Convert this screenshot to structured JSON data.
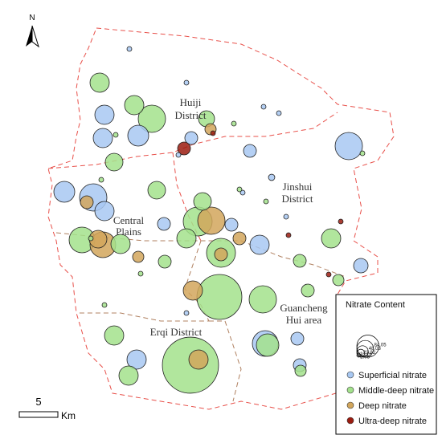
{
  "north": "N",
  "scale": {
    "value": 5,
    "unit": "Km"
  },
  "districts": [
    [
      "Huiji",
      "District"
    ],
    [
      "Jinshui",
      "District"
    ],
    [
      "Central",
      "Plains"
    ],
    [
      "Guancheng",
      "Hui area"
    ],
    [
      "Erqi District"
    ]
  ],
  "legend": {
    "title": "Nitrate Content",
    "sizes": [
      2.05,
      10.76,
      22.32,
      48.03,
      84.05
    ],
    "types": [
      {
        "name": "Superficial  nitrate",
        "color": "#a8c8f2"
      },
      {
        "name": "Middle-deep nitrate",
        "color": "#a3e28c"
      },
      {
        "name": "Deep nitrate",
        "color": "#d2a65c"
      },
      {
        "name": "Ultra-deep nitrate",
        "color": "#9b1c10"
      }
    ]
  },
  "sites": [
    {
      "type": 0,
      "value": 1.2
    },
    {
      "type": 0,
      "value": 1.2
    },
    {
      "type": 0,
      "value": 1.2
    },
    {
      "type": 0,
      "value": 1.2
    },
    {
      "type": 0,
      "value": 19.3
    },
    {
      "type": 0,
      "value": 22.7
    },
    {
      "type": 0,
      "value": 19.3
    },
    {
      "type": 0,
      "value": 8.6
    },
    {
      "type": 0,
      "value": 8.6
    },
    {
      "type": 0,
      "value": 38.8
    },
    {
      "type": 0,
      "value": 1.2
    },
    {
      "type": 0,
      "value": 2.1
    },
    {
      "type": 0,
      "value": 1.2
    },
    {
      "type": 0,
      "value": 22.7
    },
    {
      "type": 0,
      "value": 38.8
    },
    {
      "type": 0,
      "value": 19.3
    },
    {
      "type": 0,
      "value": 8.6
    },
    {
      "type": 0,
      "value": 8.6
    },
    {
      "type": 0,
      "value": 1.2
    },
    {
      "type": 0,
      "value": 19.3
    },
    {
      "type": 0,
      "value": 10.9
    },
    {
      "type": 0,
      "value": 1.2
    },
    {
      "type": 0,
      "value": 34.4
    },
    {
      "type": 0,
      "value": 8.6
    },
    {
      "type": 0,
      "value": 19.3
    },
    {
      "type": 0,
      "value": 8.6
    },
    {
      "type": 1,
      "value": 19.3
    },
    {
      "type": 1,
      "value": 19.3
    },
    {
      "type": 1,
      "value": 38.8
    },
    {
      "type": 1,
      "value": 13.4
    },
    {
      "type": 1,
      "value": 1.2
    },
    {
      "type": 1,
      "value": 1.2
    },
    {
      "type": 1,
      "value": 16.2
    },
    {
      "type": 1,
      "value": 1.2
    },
    {
      "type": 1,
      "value": 16.2
    },
    {
      "type": 1,
      "value": 1.2
    },
    {
      "type": 1,
      "value": 1.2
    },
    {
      "type": 1,
      "value": 16.2
    },
    {
      "type": 1,
      "value": 43.5
    },
    {
      "type": 1,
      "value": 19.3
    },
    {
      "type": 1,
      "value": 34.4
    },
    {
      "type": 1,
      "value": 19.3
    },
    {
      "type": 1,
      "value": 43.5
    },
    {
      "type": 1,
      "value": 19.3
    },
    {
      "type": 1,
      "value": 8.6
    },
    {
      "type": 1,
      "value": 8.6
    },
    {
      "type": 1,
      "value": 1.2
    },
    {
      "type": 1,
      "value": 6.6
    },
    {
      "type": 1,
      "value": 8.6
    },
    {
      "type": 1,
      "value": 105
    },
    {
      "type": 1,
      "value": 38.8
    },
    {
      "type": 1,
      "value": 1.2
    },
    {
      "type": 1,
      "value": 19.3
    },
    {
      "type": 1,
      "value": 26.3
    },
    {
      "type": 1,
      "value": 164
    },
    {
      "type": 1,
      "value": 19.3
    },
    {
      "type": 1,
      "value": 1.2
    },
    {
      "type": 1,
      "value": 6.6
    },
    {
      "type": 1,
      "value": 1.2
    },
    {
      "type": 2,
      "value": 34.4
    },
    {
      "type": 2,
      "value": 6.6
    },
    {
      "type": 2,
      "value": 8.6
    },
    {
      "type": 2,
      "value": 8.6
    },
    {
      "type": 2,
      "value": 19.3
    },
    {
      "type": 2,
      "value": 16.2
    },
    {
      "type": 2,
      "value": 19.3
    },
    {
      "type": 2,
      "value": 6.6
    },
    {
      "type": 2,
      "value": 38.8
    },
    {
      "type": 2,
      "value": 8.6
    },
    {
      "type": 3,
      "value": 8.6
    },
    {
      "type": 3,
      "value": 1.2
    },
    {
      "type": 3,
      "value": 1.2
    },
    {
      "type": 3,
      "value": 1.2
    },
    {
      "type": 3,
      "value": 1.2
    }
  ]
}
